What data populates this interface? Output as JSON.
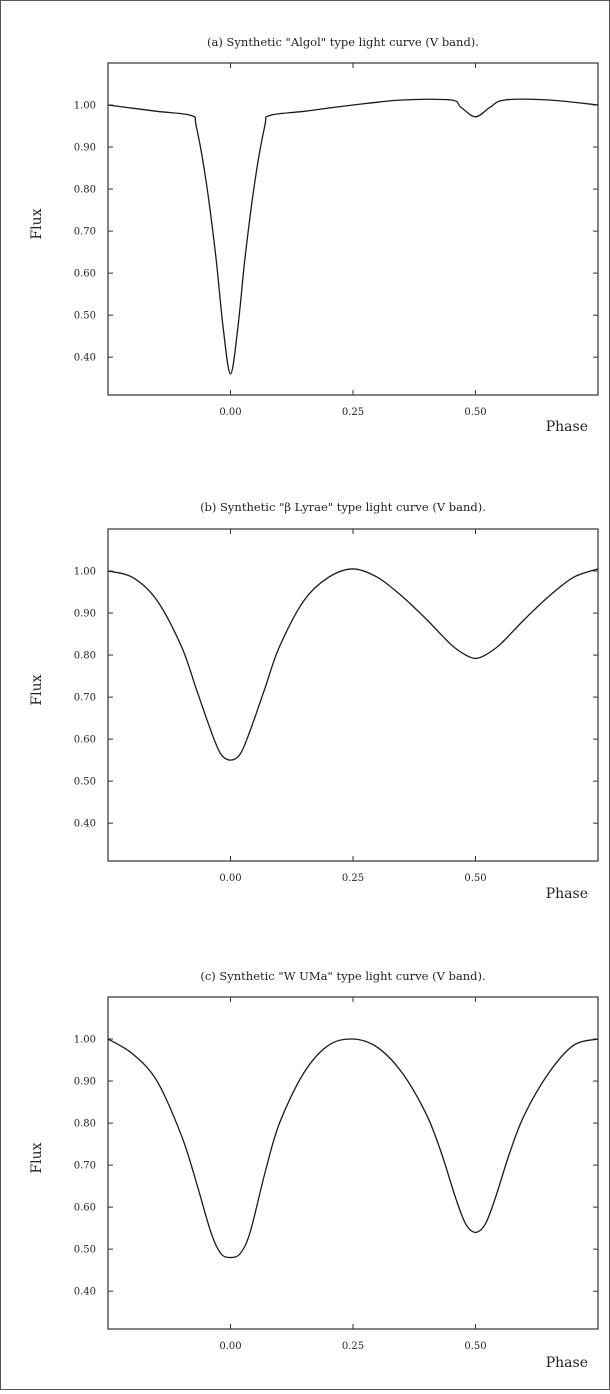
{
  "chart_data": [
    {
      "type": "line",
      "title": "(a) Synthetic \"Algol\" type light curve (V band).",
      "xlabel": "Phase",
      "ylabel": "Flux",
      "xlim": [
        -0.25,
        0.75
      ],
      "ylim": [
        0.31,
        1.1
      ],
      "xticks": [
        "0.00",
        "0.25",
        "0.50"
      ],
      "yticks": [
        "1.00",
        "0.90",
        "0.80",
        "0.70",
        "0.60",
        "0.50",
        "0.40"
      ],
      "x": [
        -0.25,
        -0.15,
        -0.08,
        -0.07,
        -0.05,
        -0.03,
        -0.015,
        0.0,
        0.015,
        0.03,
        0.05,
        0.07,
        0.08,
        0.15,
        0.25,
        0.35,
        0.45,
        0.47,
        0.5,
        0.53,
        0.56,
        0.65,
        0.75
      ],
      "series": [
        {
          "values": [
            1.0,
            0.985,
            0.975,
            0.95,
            0.82,
            0.64,
            0.47,
            0.36,
            0.47,
            0.64,
            0.82,
            0.95,
            0.975,
            0.985,
            1.0,
            1.012,
            1.012,
            0.995,
            0.972,
            0.995,
            1.012,
            1.012,
            1.0
          ]
        }
      ]
    },
    {
      "type": "line",
      "title": "(b) Synthetic \"β Lyrae\" type light curve (V band).",
      "xlabel": "Phase",
      "ylabel": "Flux",
      "xlim": [
        -0.25,
        0.75
      ],
      "ylim": [
        0.31,
        1.1
      ],
      "xticks": [
        "0.00",
        "0.25",
        "0.50"
      ],
      "yticks": [
        "1.00",
        "0.90",
        "0.80",
        "0.70",
        "0.60",
        "0.50",
        "0.40"
      ],
      "x": [
        -0.25,
        -0.2,
        -0.15,
        -0.1,
        -0.07,
        -0.04,
        -0.02,
        0.0,
        0.02,
        0.04,
        0.07,
        0.1,
        0.15,
        0.2,
        0.25,
        0.3,
        0.35,
        0.4,
        0.45,
        0.48,
        0.5,
        0.52,
        0.55,
        0.6,
        0.65,
        0.7,
        0.75
      ],
      "series": [
        {
          "values": [
            1.0,
            0.985,
            0.93,
            0.82,
            0.72,
            0.62,
            0.565,
            0.55,
            0.565,
            0.62,
            0.72,
            0.82,
            0.93,
            0.985,
            1.005,
            0.985,
            0.94,
            0.885,
            0.825,
            0.8,
            0.792,
            0.8,
            0.825,
            0.885,
            0.94,
            0.985,
            1.005
          ]
        }
      ]
    },
    {
      "type": "line",
      "title": "(c) Synthetic \"W UMa\" type light curve (V band).",
      "xlabel": "Phase",
      "ylabel": "Flux",
      "xlim": [
        -0.25,
        0.75
      ],
      "ylim": [
        0.31,
        1.1
      ],
      "xticks": [
        "0.00",
        "0.25",
        "0.50"
      ],
      "yticks": [
        "1.00",
        "0.90",
        "0.80",
        "0.70",
        "0.60",
        "0.50",
        "0.40"
      ],
      "x": [
        -0.25,
        -0.2,
        -0.15,
        -0.1,
        -0.07,
        -0.04,
        -0.02,
        0.0,
        0.02,
        0.04,
        0.07,
        0.1,
        0.15,
        0.2,
        0.25,
        0.3,
        0.35,
        0.4,
        0.43,
        0.46,
        0.48,
        0.5,
        0.52,
        0.54,
        0.57,
        0.6,
        0.65,
        0.7,
        0.75
      ],
      "series": [
        {
          "values": [
            1.0,
            0.965,
            0.9,
            0.77,
            0.66,
            0.54,
            0.49,
            0.48,
            0.49,
            0.54,
            0.68,
            0.8,
            0.92,
            0.985,
            1.0,
            0.98,
            0.92,
            0.82,
            0.73,
            0.62,
            0.56,
            0.54,
            0.56,
            0.62,
            0.73,
            0.82,
            0.92,
            0.985,
            1.0
          ]
        }
      ]
    }
  ]
}
